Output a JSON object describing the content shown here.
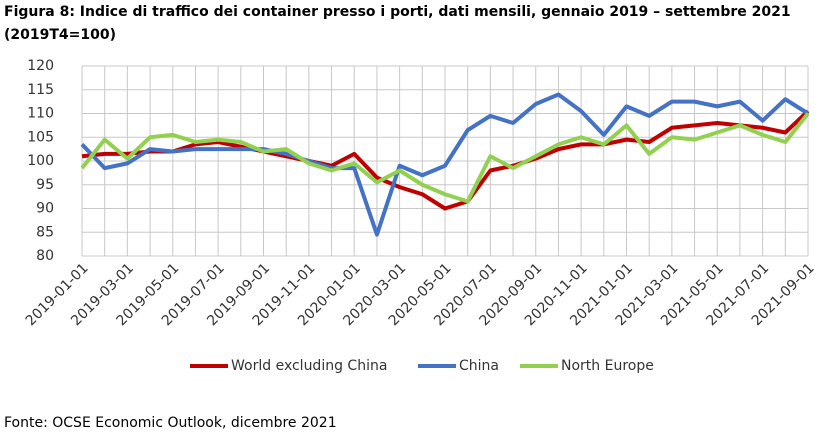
{
  "chart_data": {
    "type": "line",
    "title": "Figura 8: Indice di traffico dei container presso i porti, dati mensili, gennaio 2019 – settembre 2021",
    "subtitle": "(2019T4=100)",
    "source": "Fonte: OCSE Economic Outlook, dicembre 2021",
    "categories": [
      "2019-01-01",
      null,
      "2019-03-01",
      null,
      "2019-05-01",
      null,
      "2019-07-01",
      null,
      "2019-09-01",
      null,
      "2019-11-01",
      null,
      "2020-01-01",
      null,
      "2020-03-01",
      null,
      "2020-05-01",
      null,
      "2020-07-01",
      null,
      "2020-09-01",
      null,
      "2020-11-01",
      null,
      "2021-01-01",
      null,
      "2021-03-01",
      null,
      "2021-05-01",
      null,
      "2021-07-01",
      null,
      "2021-09-01"
    ],
    "series": [
      {
        "name": "World excluding China",
        "color": "#c00000",
        "values": [
          101,
          101.5,
          101.5,
          102,
          102,
          103.5,
          104,
          103,
          102,
          101,
          100,
          99,
          101.5,
          96.5,
          94.5,
          93,
          90,
          91.5,
          98,
          99,
          100.5,
          102.5,
          103.5,
          103.5,
          104.5,
          104,
          107,
          107.5,
          108,
          107.5,
          107,
          106,
          110.5
        ]
      },
      {
        "name": "China",
        "color": "#4472c4",
        "values": [
          103.5,
          98.5,
          99.5,
          102.5,
          102,
          102.5,
          102.5,
          102.5,
          102.5,
          101.5,
          100,
          98.5,
          98.5,
          84.5,
          99,
          97,
          99,
          106.5,
          109.5,
          108,
          112,
          114,
          110.5,
          105.5,
          111.5,
          109.5,
          112.5,
          112.5,
          111.5,
          112.5,
          108.5,
          113,
          110
        ]
      },
      {
        "name": "North Europe",
        "color": "#92d050",
        "values": [
          98.5,
          104.5,
          100.5,
          105,
          105.5,
          104,
          104.5,
          104,
          102,
          102.5,
          99.5,
          98,
          99.5,
          95.5,
          98,
          95,
          93,
          91.5,
          101,
          98.5,
          101,
          103.5,
          105,
          103.5,
          107.5,
          101.5,
          105,
          104.5,
          106,
          107.5,
          105.5,
          104,
          110
        ]
      }
    ],
    "ylim": [
      80,
      120
    ],
    "yticks": [
      80,
      85,
      90,
      95,
      100,
      105,
      110,
      115,
      120
    ],
    "grid": true,
    "legend": "bottom"
  }
}
